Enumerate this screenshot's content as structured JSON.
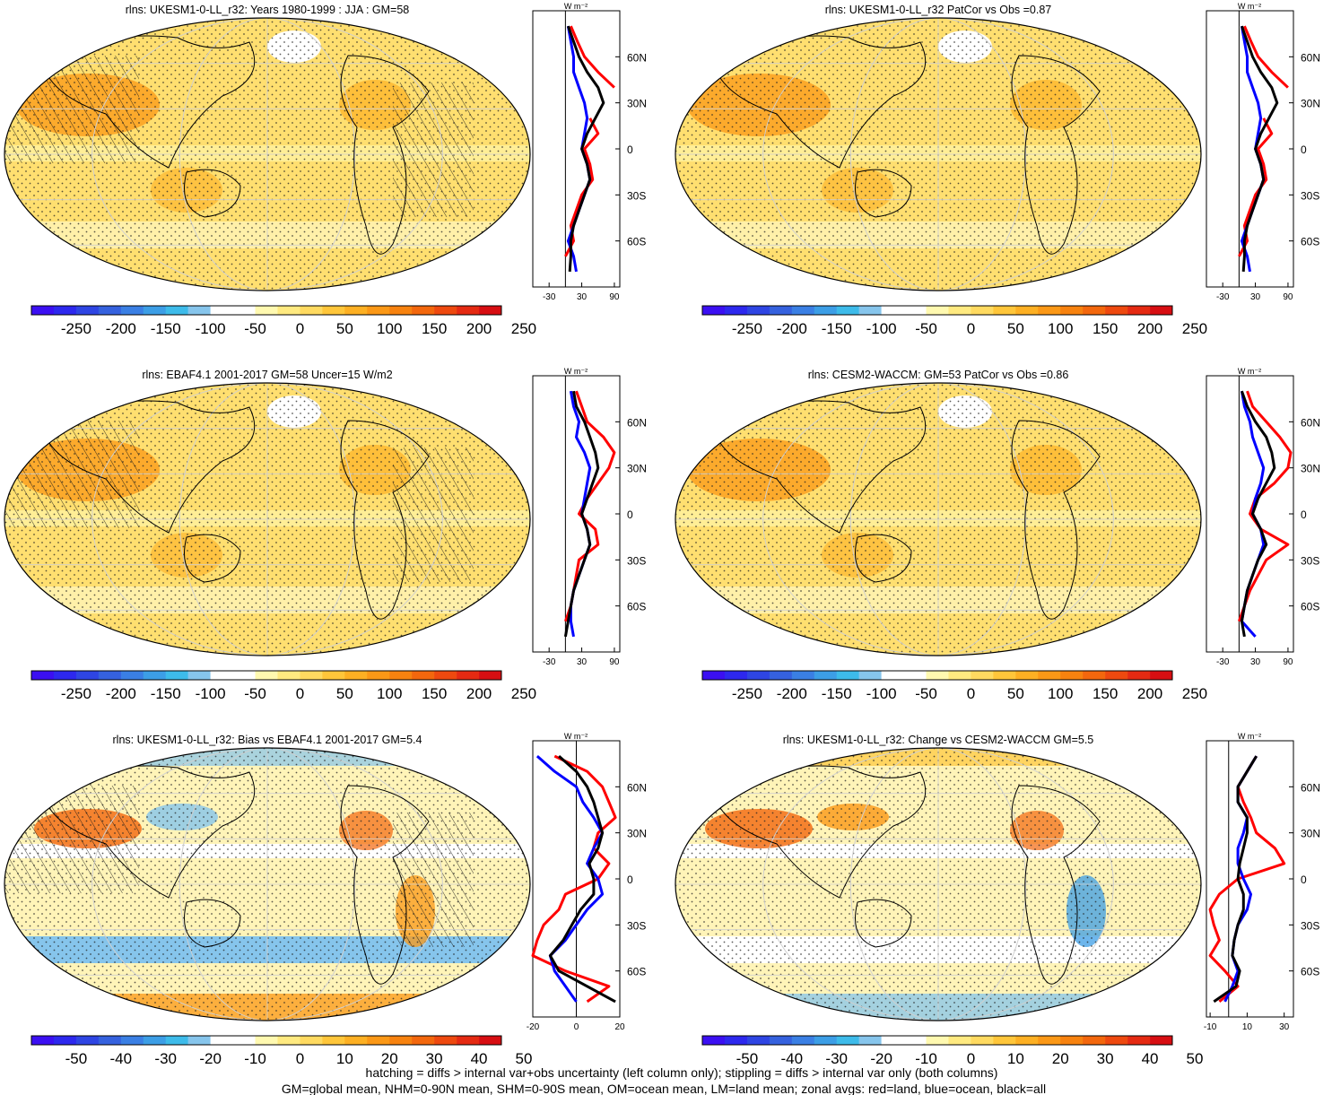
{
  "footer": {
    "line1": "hatching = diffs > internal var+obs uncertainty (left column only); stippling = diffs > internal var only (both columns)",
    "line2": "GM=global mean, NHM=0-90N mean, SHM=0-90S mean, OM=ocean mean, LM=land mean; zonal avgs: red=land, blue=ocean, black=all"
  },
  "colors": {
    "land": "#ff0000",
    "ocean": "#0000ff",
    "all": "#000000",
    "axis": "#000000"
  },
  "colormap": [
    "#3b0ff2",
    "#2d28ee",
    "#2e45e3",
    "#3561de",
    "#3a7fe4",
    "#3c9ee6",
    "#3dbbea",
    "#86c5ec",
    "#ffffff",
    "#ffffff",
    "#fff9b0",
    "#ffea80",
    "#ffda60",
    "#ffc63a",
    "#fdb023",
    "#fb9816",
    "#f7820f",
    "#f3670d",
    "#ee490f",
    "#e52a12",
    "#d70e12"
  ],
  "chart_data": [
    {
      "type": "heatmap",
      "title": "rlns: UKESM1-0-LL_r32: Years 1980-1999 : JJA : GM=58",
      "colorbar_ticks": [
        "-250",
        "-200",
        "-150",
        "-100",
        "-50",
        "0",
        "50",
        "100",
        "150",
        "200",
        "250"
      ],
      "zonal": {
        "unit_label": "W m⁻²",
        "lat_ticks": [
          "60N",
          "30N",
          "0",
          "30S",
          "60S"
        ],
        "x_ticks": [
          "-30",
          "30",
          "90"
        ],
        "xlim": [
          -60,
          100
        ],
        "lat": [
          80,
          70,
          60,
          50,
          40,
          30,
          20,
          10,
          0,
          -10,
          -20,
          -30,
          -40,
          -50,
          -60,
          -70,
          -80
        ],
        "series": [
          {
            "name": "land",
            "color": "red",
            "values": [
              10,
              22,
              35,
              60,
              90,
              null,
              45,
              60,
              35,
              45,
              50,
              30,
              20,
              10,
              15,
              0,
              null
            ]
          },
          {
            "name": "ocean",
            "color": "blue",
            "values": [
              5,
              10,
              15,
              15,
              25,
              35,
              40,
              35,
              30,
              40,
              45,
              35,
              25,
              15,
              5,
              15,
              20
            ]
          },
          {
            "name": "all",
            "color": "black",
            "values": [
              5,
              15,
              25,
              40,
              60,
              70,
              55,
              40,
              30,
              40,
              45,
              35,
              25,
              15,
              10,
              10,
              8
            ]
          }
        ]
      }
    },
    {
      "type": "heatmap",
      "title": "rlns: UKESM1-0-LL_r32 PatCor vs Obs =0.87",
      "colorbar_ticks": [
        "-250",
        "-200",
        "-150",
        "-100",
        "-50",
        "0",
        "50",
        "100",
        "150",
        "200",
        "250"
      ],
      "zonal": {
        "unit_label": "W m⁻²",
        "lat_ticks": [
          "60N",
          "30N",
          "0",
          "30S",
          "60S"
        ],
        "x_ticks": [
          "-30",
          "30",
          "90"
        ],
        "xlim": [
          -60,
          100
        ],
        "lat": [
          80,
          70,
          60,
          50,
          40,
          30,
          20,
          10,
          0,
          -10,
          -20,
          -30,
          -40,
          -50,
          -60,
          -70,
          -80
        ],
        "series": [
          {
            "name": "land",
            "color": "red",
            "values": [
              10,
              22,
              35,
              60,
              90,
              null,
              45,
              60,
              35,
              45,
              50,
              30,
              20,
              10,
              15,
              0,
              null
            ]
          },
          {
            "name": "ocean",
            "color": "blue",
            "values": [
              5,
              10,
              15,
              15,
              25,
              35,
              40,
              35,
              30,
              40,
              45,
              35,
              25,
              15,
              5,
              15,
              20
            ]
          },
          {
            "name": "all",
            "color": "black",
            "values": [
              5,
              15,
              25,
              40,
              60,
              70,
              55,
              40,
              30,
              40,
              45,
              35,
              25,
              15,
              10,
              10,
              8
            ]
          }
        ]
      }
    },
    {
      "type": "heatmap",
      "title": "rlns: EBAF4.1 2001-2017 GM=58 Uncer=15 W/m2",
      "colorbar_ticks": [
        "-250",
        "-200",
        "-150",
        "-100",
        "-50",
        "0",
        "50",
        "100",
        "150",
        "200",
        "250"
      ],
      "zonal": {
        "unit_label": "W m⁻²",
        "lat_ticks": [
          "60N",
          "30N",
          "0",
          "30S",
          "60S"
        ],
        "x_ticks": [
          "-30",
          "30",
          "90"
        ],
        "xlim": [
          -60,
          100
        ],
        "lat": [
          80,
          70,
          60,
          50,
          40,
          30,
          20,
          10,
          0,
          -10,
          -20,
          -30,
          -40,
          -50,
          -60,
          -70,
          -80
        ],
        "series": [
          {
            "name": "land",
            "color": "red",
            "values": [
              20,
              30,
              40,
              70,
              90,
              80,
              60,
              40,
              25,
              55,
              60,
              25,
              20,
              15,
              10,
              0,
              null
            ]
          },
          {
            "name": "ocean",
            "color": "blue",
            "values": [
              10,
              15,
              25,
              20,
              35,
              45,
              40,
              35,
              30,
              40,
              45,
              35,
              25,
              15,
              10,
              10,
              15
            ]
          },
          {
            "name": "all",
            "color": "black",
            "values": [
              15,
              20,
              35,
              45,
              55,
              60,
              50,
              40,
              30,
              40,
              45,
              35,
              25,
              15,
              10,
              5,
              0
            ]
          }
        ]
      }
    },
    {
      "type": "heatmap",
      "title": "rlns: CESM2-WACCM: GM=53 PatCor vs Obs =0.86",
      "colorbar_ticks": [
        "-250",
        "-200",
        "-150",
        "-100",
        "-50",
        "0",
        "50",
        "100",
        "150",
        "200",
        "250"
      ],
      "zonal": {
        "unit_label": "W m⁻²",
        "lat_ticks": [
          "60N",
          "30N",
          "0",
          "30S",
          "60S"
        ],
        "x_ticks": [
          "-30",
          "30",
          "90"
        ],
        "xlim": [
          -60,
          100
        ],
        "lat": [
          80,
          70,
          60,
          50,
          40,
          30,
          20,
          10,
          0,
          -10,
          -20,
          -30,
          -40,
          -50,
          -60,
          -70,
          -80
        ],
        "series": [
          {
            "name": "land",
            "color": "red",
            "values": [
              15,
              25,
              50,
              75,
              95,
              90,
              65,
              30,
              20,
              40,
              90,
              50,
              35,
              20,
              10,
              0,
              null
            ]
          },
          {
            "name": "ocean",
            "color": "blue",
            "values": [
              5,
              10,
              20,
              25,
              35,
              45,
              40,
              30,
              25,
              40,
              45,
              35,
              25,
              15,
              10,
              5,
              30
            ]
          },
          {
            "name": "all",
            "color": "black",
            "values": [
              5,
              15,
              30,
              50,
              60,
              65,
              50,
              35,
              25,
              40,
              50,
              35,
              25,
              15,
              10,
              5,
              10
            ]
          }
        ]
      }
    },
    {
      "type": "heatmap",
      "title": "rlns: UKESM1-0-LL_r32: Bias vs EBAF4.1 2001-2017 GM=5.4",
      "colorbar_ticks": [
        "-50",
        "-40",
        "-30",
        "-20",
        "-10",
        "0",
        "10",
        "20",
        "30",
        "40",
        "50"
      ],
      "zonal": {
        "unit_label": "W m⁻²",
        "lat_ticks": [
          "60N",
          "30N",
          "0",
          "30S",
          "60S"
        ],
        "x_ticks": [
          "-20",
          "0",
          "20"
        ],
        "xlim": [
          -20,
          20
        ],
        "lat": [
          80,
          70,
          60,
          50,
          40,
          30,
          20,
          10,
          0,
          -10,
          -20,
          -30,
          -40,
          -50,
          -60,
          -70,
          -80
        ],
        "series": [
          {
            "name": "land",
            "color": "red",
            "values": [
              -10,
              5,
              12,
              15,
              18,
              10,
              8,
              15,
              10,
              -5,
              -8,
              -15,
              -18,
              -20,
              -5,
              15,
              5
            ]
          },
          {
            "name": "ocean",
            "color": "blue",
            "values": [
              -18,
              -10,
              0,
              3,
              8,
              12,
              8,
              5,
              10,
              12,
              5,
              0,
              -5,
              -12,
              -10,
              -5,
              0
            ]
          },
          {
            "name": "all",
            "color": "black",
            "values": [
              -8,
              0,
              5,
              8,
              10,
              12,
              10,
              6,
              8,
              8,
              2,
              -2,
              -6,
              -12,
              -8,
              5,
              18
            ]
          }
        ]
      }
    },
    {
      "type": "heatmap",
      "title": "rlns: UKESM1-0-LL_r32: Change vs CESM2-WACCM GM=5.5",
      "colorbar_ticks": [
        "-50",
        "-40",
        "-30",
        "-20",
        "-10",
        "0",
        "10",
        "20",
        "30",
        "40",
        "50"
      ],
      "zonal": {
        "unit_label": "W m⁻²",
        "lat_ticks": [
          "60N",
          "30N",
          "0",
          "30S",
          "60S"
        ],
        "x_ticks": [
          "-10",
          "10",
          "30"
        ],
        "xlim": [
          -12,
          35
        ],
        "lat": [
          80,
          70,
          60,
          50,
          40,
          30,
          20,
          10,
          0,
          -10,
          -20,
          -30,
          -40,
          -50,
          -60,
          -70,
          -80
        ],
        "series": [
          {
            "name": "land",
            "color": "red",
            "values": [
              15,
              10,
              5,
              8,
              12,
              15,
              25,
              30,
              5,
              -5,
              -10,
              -8,
              -5,
              -10,
              -2,
              5,
              -5
            ]
          },
          {
            "name": "ocean",
            "color": "blue",
            "values": [
              15,
              10,
              5,
              5,
              10,
              8,
              5,
              5,
              8,
              12,
              10,
              5,
              3,
              2,
              5,
              2,
              -2
            ]
          },
          {
            "name": "all",
            "color": "black",
            "values": [
              15,
              10,
              5,
              5,
              10,
              10,
              8,
              6,
              5,
              8,
              8,
              5,
              3,
              2,
              6,
              4,
              -8
            ]
          }
        ]
      }
    }
  ]
}
